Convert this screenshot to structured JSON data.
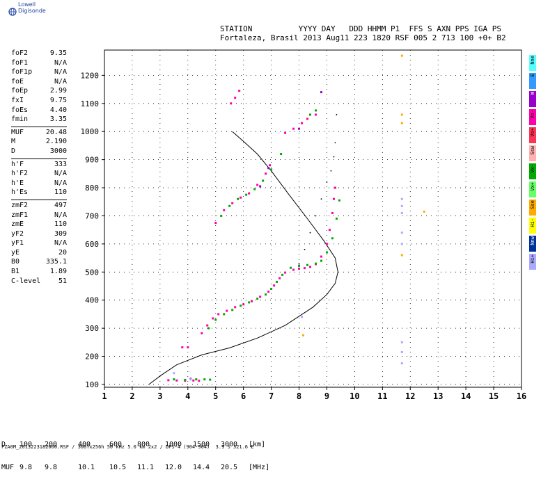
{
  "brand": {
    "name": "Lowell Digisonde",
    "logo": "globe-icon"
  },
  "header": {
    "line1": "STATION          YYYY DAY   DDD HHMM P1  FFS S AXN PPS IGA PS",
    "line2": "Fortaleza, Brasil 2013 Aug11 223 1820 RSF 005 2 713 100 +0+ B2"
  },
  "params_group1": [
    {
      "name": "foF2",
      "value": "9.35"
    },
    {
      "name": "foF1",
      "value": "N/A"
    },
    {
      "name": "foF1p",
      "value": "N/A"
    },
    {
      "name": "foE",
      "value": "N/A"
    },
    {
      "name": "foEp",
      "value": "2.99"
    },
    {
      "name": "fxI",
      "value": "9.75"
    },
    {
      "name": "foEs",
      "value": "4.40"
    },
    {
      "name": "fmin",
      "value": "3.35"
    }
  ],
  "params_group2": [
    {
      "name": "MUF",
      "value": "20.48"
    },
    {
      "name": "M",
      "value": "2.190"
    },
    {
      "name": "D",
      "value": "3000"
    }
  ],
  "params_group3": [
    {
      "name": "h'F",
      "value": "333"
    },
    {
      "name": "h'F2",
      "value": "N/A"
    },
    {
      "name": "h'E",
      "value": "N/A"
    },
    {
      "name": "h'Es",
      "value": "110"
    }
  ],
  "params_group4": [
    {
      "name": "zmF2",
      "value": "497"
    },
    {
      "name": "zmF1",
      "value": "N/A"
    },
    {
      "name": "zmE",
      "value": "110"
    },
    {
      "name": "yF2",
      "value": "309"
    },
    {
      "name": "yF1",
      "value": "N/A"
    },
    {
      "name": "yE",
      "value": "20"
    },
    {
      "name": "B0",
      "value": "335.1"
    },
    {
      "name": "B1",
      "value": "1.89"
    },
    {
      "name": "C-level",
      "value": "51"
    }
  ],
  "legend": [
    {
      "label": "Nne",
      "color": "#55ffff"
    },
    {
      "label": "E",
      "color": "#3399ff"
    },
    {
      "label": "W",
      "color": "#9900cc"
    },
    {
      "label": "Vo-",
      "color": "#ff00aa"
    },
    {
      "label": "Vo+",
      "color": "#ff3355"
    },
    {
      "label": "Ssw",
      "color": "#ffb0b0"
    },
    {
      "label": "Vx-",
      "color": "#00aa00"
    },
    {
      "label": "Vx+",
      "color": "#66ff66"
    },
    {
      "label": "Sse",
      "color": "#ffaa00"
    },
    {
      "label": "Hi-",
      "color": "#ffff00"
    },
    {
      "label": "Nnw",
      "color": "#003399"
    },
    {
      "label": "Hi+",
      "color": "#aaaaff"
    }
  ],
  "muf_table": {
    "d_label": "D",
    "d_values": [
      "100",
      "200",
      "400",
      "600",
      "800",
      "1000",
      "1500",
      "3000"
    ],
    "d_unit": "[km]",
    "muf_label": "MUF",
    "muf_values": [
      "9.8",
      "9.8",
      "10.1",
      "10.5",
      "11.1",
      "12.0",
      "14.4",
      "20.5"
    ],
    "muf_unit": "[MHz]"
  },
  "footer": "FZA0M_2013223182000.RSF / 300fx256h 50 kHz 5.0 km 2x2 / DPS-4 (904-904)  3.9 S 321.6 E",
  "chart_data": {
    "type": "scatter",
    "title": "",
    "xlabel": "",
    "ylabel": "",
    "xlim": [
      1,
      16
    ],
    "ylim": [
      90,
      1290
    ],
    "x_ticks": [
      1,
      2,
      3,
      4,
      5,
      6,
      7,
      8,
      9,
      10,
      11,
      12,
      13,
      14,
      15,
      16
    ],
    "y_ticks": [
      100,
      200,
      300,
      400,
      500,
      600,
      700,
      800,
      900,
      1000,
      1100,
      1200
    ],
    "grid": true,
    "series": [
      {
        "color": "#ff00aa",
        "points": [
          [
            3.3,
            115
          ],
          [
            3.6,
            114
          ],
          [
            3.9,
            113
          ],
          [
            4.2,
            114
          ],
          [
            4.4,
            113
          ],
          [
            4.5,
            282
          ],
          [
            4.7,
            310
          ],
          [
            4.9,
            335
          ],
          [
            5.1,
            350
          ],
          [
            5.4,
            362
          ],
          [
            5.7,
            375
          ],
          [
            6.0,
            385
          ],
          [
            6.3,
            396
          ],
          [
            6.6,
            412
          ],
          [
            6.9,
            430
          ],
          [
            7.1,
            452
          ],
          [
            7.3,
            478
          ],
          [
            7.5,
            498
          ],
          [
            7.8,
            508
          ],
          [
            8.0,
            512
          ],
          [
            8.2,
            514
          ],
          [
            8.4,
            518
          ],
          [
            8.6,
            528
          ],
          [
            8.8,
            555
          ],
          [
            9.0,
            600
          ],
          [
            9.1,
            650
          ],
          [
            9.2,
            710
          ],
          [
            9.25,
            760
          ],
          [
            9.3,
            800
          ],
          [
            5.55,
            1100
          ],
          [
            5.7,
            1120
          ],
          [
            5.85,
            1145
          ],
          [
            5.0,
            675
          ],
          [
            5.3,
            720
          ],
          [
            5.6,
            745
          ],
          [
            5.9,
            765
          ],
          [
            6.2,
            780
          ],
          [
            6.5,
            810
          ],
          [
            6.8,
            850
          ],
          [
            6.95,
            880
          ],
          [
            7.5,
            995
          ],
          [
            7.8,
            1010
          ],
          [
            8.1,
            1030
          ],
          [
            8.3,
            1045
          ],
          [
            8.6,
            1060
          ],
          [
            3.8,
            232
          ],
          [
            4.0,
            232
          ]
        ]
      },
      {
        "color": "#00aa00",
        "points": [
          [
            3.5,
            118
          ],
          [
            3.9,
            116
          ],
          [
            4.3,
            118
          ],
          [
            4.6,
            118
          ],
          [
            4.8,
            117
          ],
          [
            4.75,
            300
          ],
          [
            5.0,
            330
          ],
          [
            5.3,
            350
          ],
          [
            5.6,
            365
          ],
          [
            5.9,
            380
          ],
          [
            6.2,
            392
          ],
          [
            6.5,
            405
          ],
          [
            6.8,
            420
          ],
          [
            7.0,
            440
          ],
          [
            7.2,
            465
          ],
          [
            7.4,
            490
          ],
          [
            7.7,
            515
          ],
          [
            8.0,
            522
          ],
          [
            8.3,
            525
          ],
          [
            8.6,
            530
          ],
          [
            8.8,
            540
          ],
          [
            9.0,
            570
          ],
          [
            9.2,
            620
          ],
          [
            9.35,
            690
          ],
          [
            9.45,
            755
          ],
          [
            5.2,
            700
          ],
          [
            5.5,
            735
          ],
          [
            5.8,
            760
          ],
          [
            6.1,
            775
          ],
          [
            6.4,
            795
          ],
          [
            6.7,
            825
          ],
          [
            7.0,
            865
          ],
          [
            7.35,
            920
          ],
          [
            8.4,
            1060
          ],
          [
            8.6,
            1075
          ]
        ]
      },
      {
        "color": "#9900cc",
        "points": [
          [
            4.1,
            120
          ],
          [
            6.6,
            805
          ],
          [
            6.9,
            870
          ],
          [
            8.0,
            1010
          ],
          [
            8.8,
            1140
          ]
        ]
      },
      {
        "color": "#aaaaff",
        "points": [
          [
            3.5,
            140
          ],
          [
            4.1,
            118
          ],
          [
            8.1,
            340
          ],
          [
            11.7,
            250
          ],
          [
            11.7,
            215
          ],
          [
            11.7,
            760
          ],
          [
            11.7,
            735
          ],
          [
            11.7,
            710
          ],
          [
            11.7,
            640
          ],
          [
            11.7,
            600
          ],
          [
            11.7,
            175
          ]
        ]
      },
      {
        "color": "#ffaa00",
        "points": [
          [
            11.7,
            1060
          ],
          [
            11.7,
            1030
          ],
          [
            11.7,
            560
          ],
          [
            12.5,
            715
          ],
          [
            8.15,
            275
          ],
          [
            11.7,
            1270
          ]
        ]
      }
    ],
    "lines": [
      {
        "name": "profile",
        "color": "#000000",
        "points": [
          [
            2.6,
            100
          ],
          [
            3.0,
            130
          ],
          [
            3.6,
            170
          ],
          [
            4.5,
            205
          ],
          [
            5.5,
            230
          ],
          [
            6.5,
            265
          ],
          [
            7.5,
            310
          ],
          [
            8.5,
            375
          ],
          [
            9.0,
            420
          ],
          [
            9.3,
            460
          ],
          [
            9.4,
            500
          ],
          [
            9.3,
            550
          ],
          [
            8.9,
            610
          ],
          [
            8.3,
            690
          ],
          [
            7.6,
            780
          ],
          [
            7.0,
            860
          ],
          [
            6.5,
            920
          ],
          [
            6.0,
            965
          ],
          [
            5.6,
            1000
          ]
        ]
      },
      {
        "name": "extraordinary",
        "color": "#000000",
        "dotted": true,
        "points": [
          [
            8.0,
            530
          ],
          [
            8.2,
            580
          ],
          [
            8.4,
            640
          ],
          [
            8.6,
            700
          ],
          [
            8.8,
            760
          ],
          [
            9.0,
            820
          ],
          [
            9.15,
            860
          ],
          [
            9.25,
            910
          ],
          [
            9.3,
            960
          ],
          [
            9.35,
            1060
          ]
        ]
      }
    ]
  }
}
